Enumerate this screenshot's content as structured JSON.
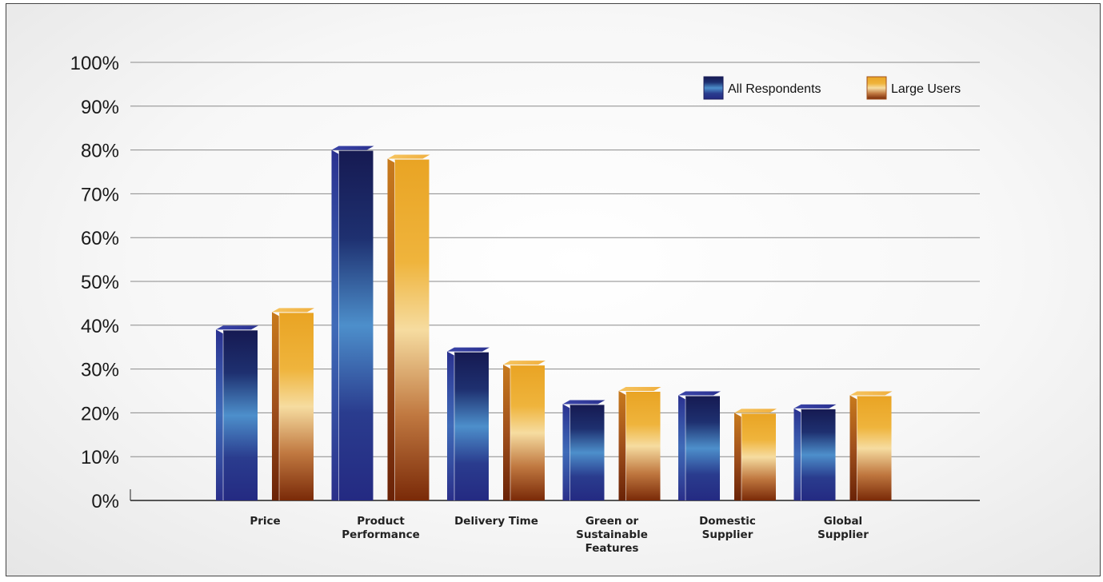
{
  "chart_data": {
    "type": "bar",
    "categories": [
      [
        "Price"
      ],
      [
        "Product",
        "Performance"
      ],
      [
        "Delivery Time"
      ],
      [
        "Green or",
        "Sustainable",
        "Features"
      ],
      [
        "Domestic",
        "Supplier"
      ],
      [
        "Global",
        "Supplier"
      ]
    ],
    "series": [
      {
        "name": "All Respondents",
        "values": [
          39,
          80,
          34,
          22,
          24,
          21
        ],
        "color": "#2b2f8f"
      },
      {
        "name": "Large Users",
        "values": [
          43,
          78,
          31,
          25,
          20,
          24
        ],
        "color": "#e8a22a"
      }
    ],
    "yticks": [
      "0%",
      "10%",
      "20%",
      "30%",
      "40%",
      "50%",
      "60%",
      "70%",
      "80%",
      "90%",
      "100%"
    ],
    "ylim": [
      0,
      100
    ],
    "grid": true,
    "legend_position": "top-right"
  }
}
